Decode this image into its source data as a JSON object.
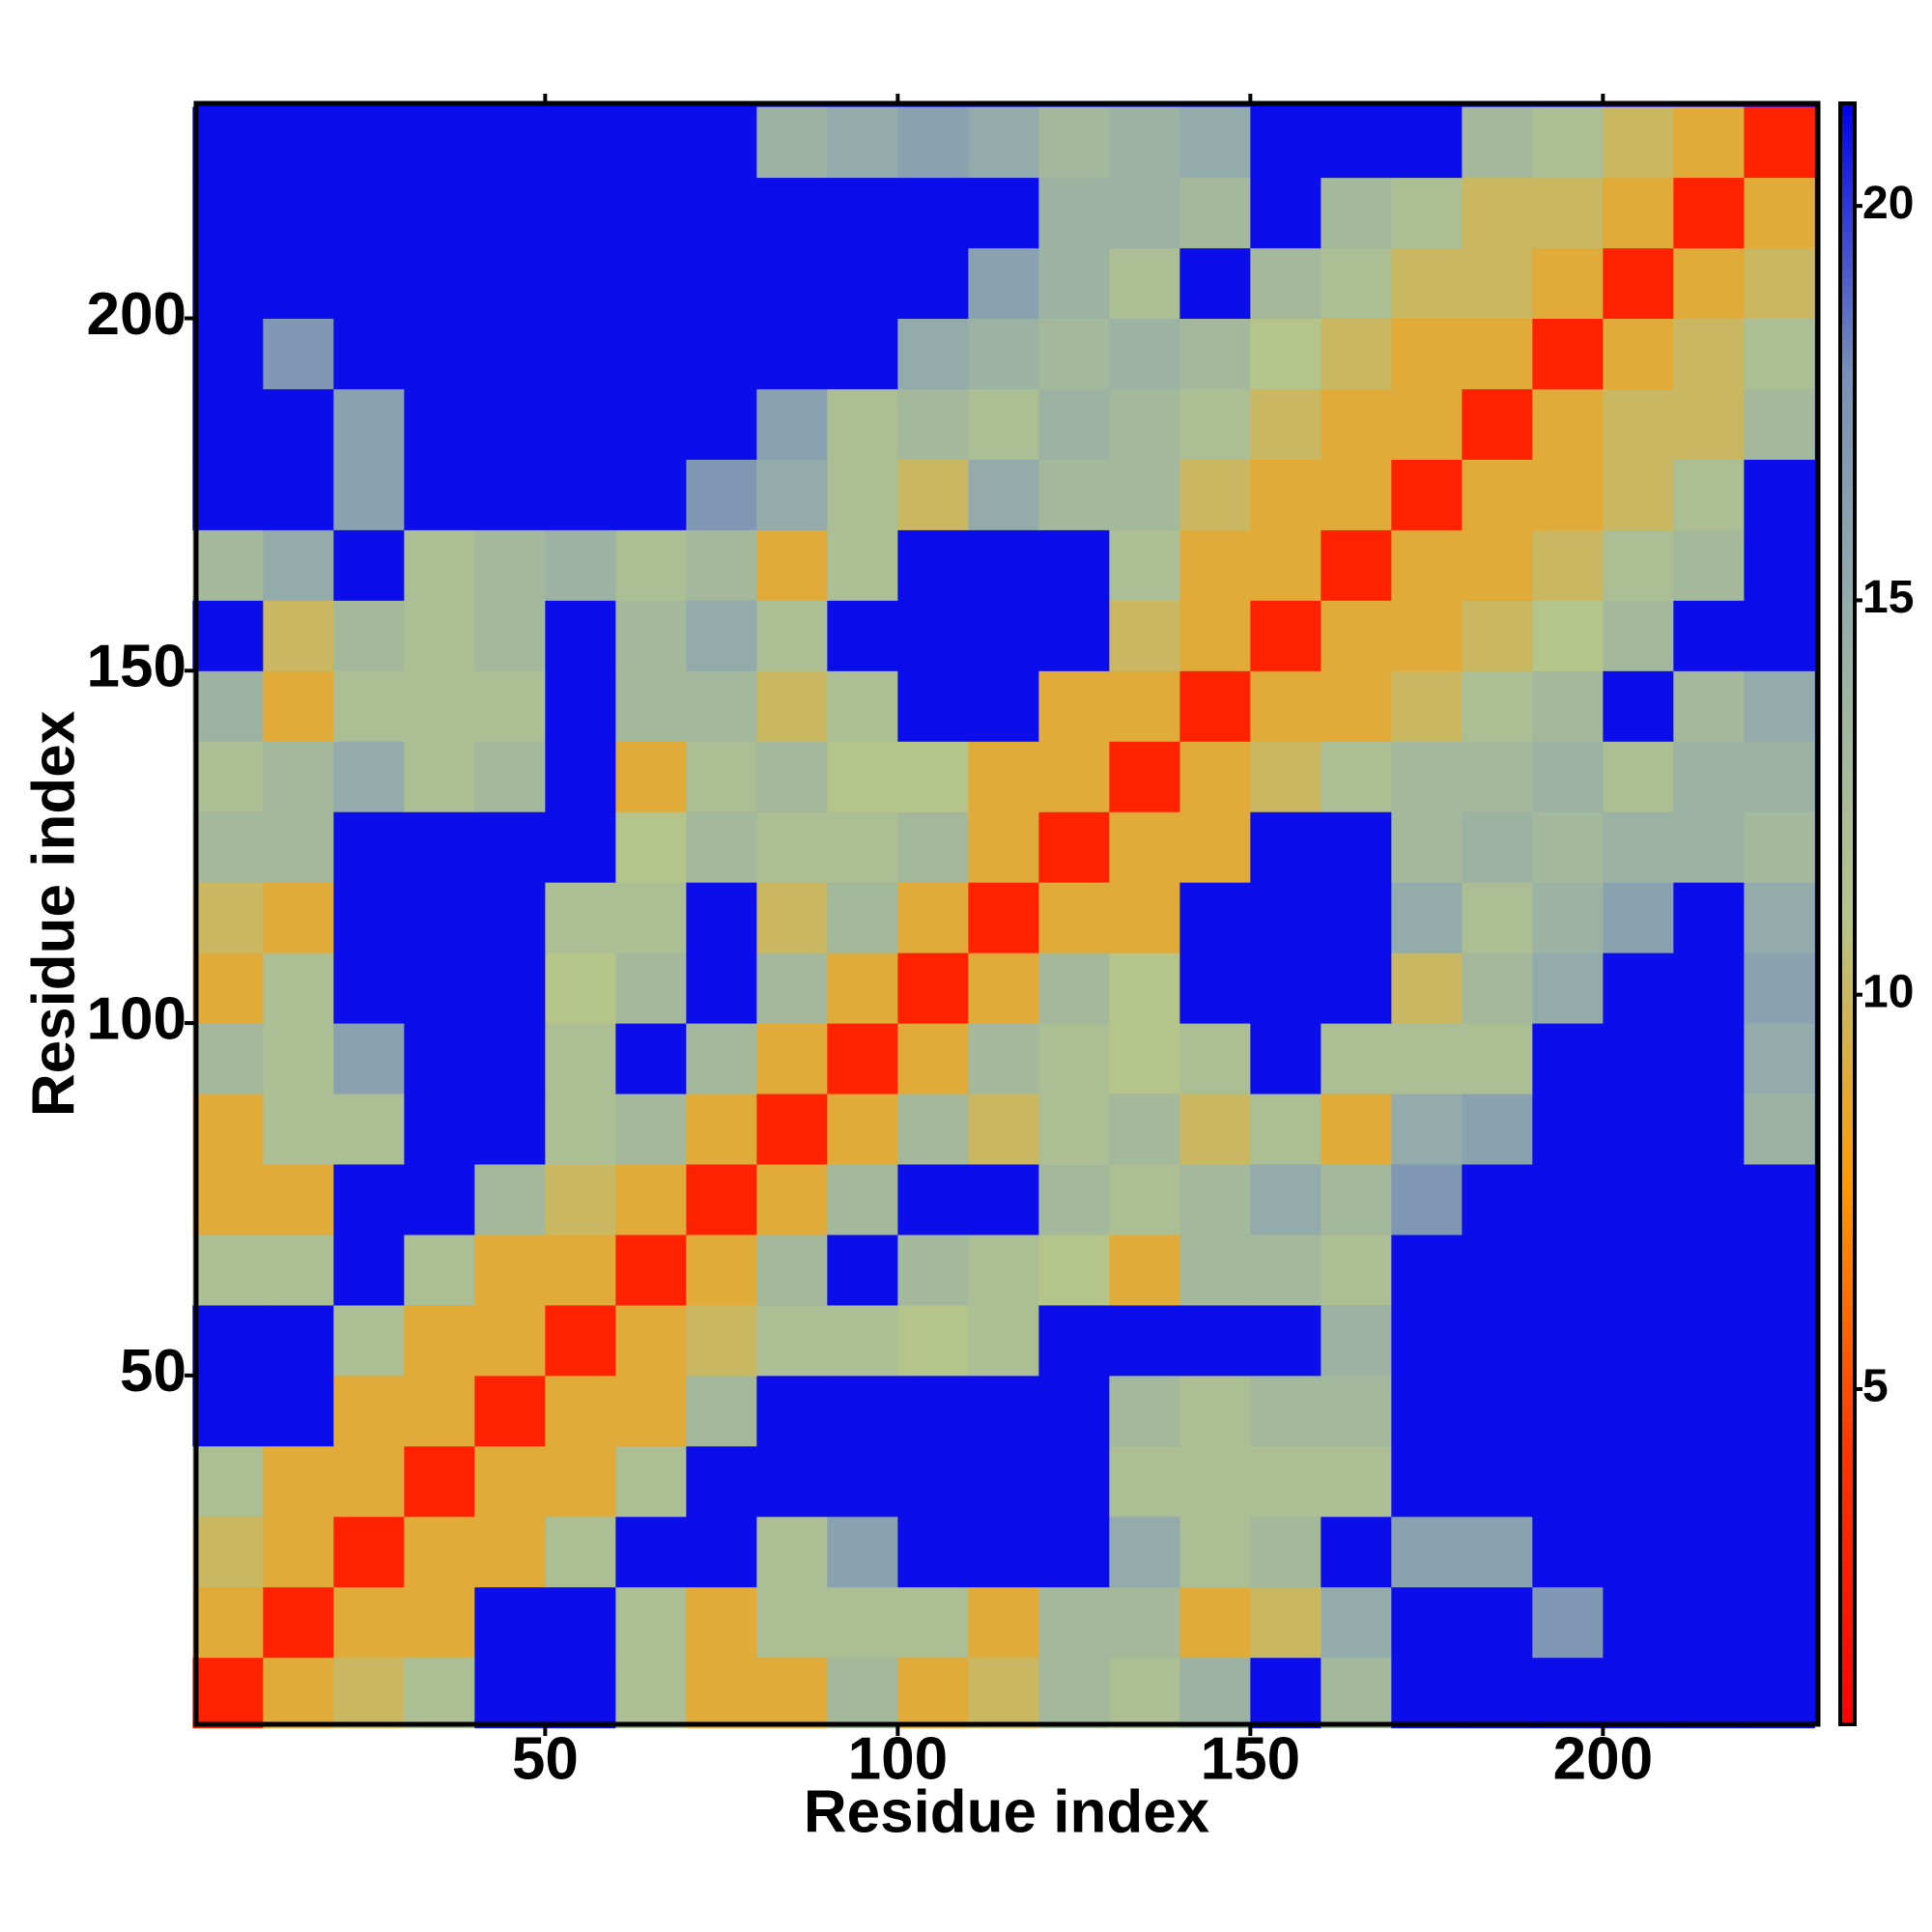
{
  "chart_data": {
    "type": "heatmap",
    "xlabel": "Residue index",
    "ylabel": "Residue index",
    "x": [
      5,
      15,
      25,
      35,
      45,
      55,
      65,
      75,
      85,
      95,
      105,
      115,
      125,
      135,
      145,
      155,
      165,
      175,
      185,
      195,
      205,
      215,
      225
    ],
    "y": [
      5,
      15,
      25,
      35,
      45,
      55,
      65,
      75,
      85,
      95,
      105,
      115,
      125,
      135,
      145,
      155,
      165,
      175,
      185,
      195,
      205,
      215,
      225
    ],
    "z": [
      [
        3,
        9,
        10,
        12,
        21,
        21,
        12,
        9,
        9,
        13,
        9,
        10,
        13,
        12,
        14,
        21,
        13,
        21,
        21,
        21,
        21,
        21,
        21
      ],
      [
        9,
        3,
        9,
        9,
        21,
        21,
        12,
        9,
        12,
        12,
        12,
        9,
        13,
        13,
        9,
        10,
        15,
        21,
        21,
        17,
        21,
        21,
        21
      ],
      [
        10,
        9,
        3,
        9,
        9,
        12,
        21,
        21,
        12,
        16,
        21,
        21,
        21,
        15,
        12,
        13,
        21,
        16,
        16,
        21,
        21,
        21,
        21
      ],
      [
        12,
        9,
        9,
        3,
        9,
        9,
        12,
        21,
        21,
        21,
        21,
        21,
        21,
        12,
        12,
        12,
        12,
        21,
        21,
        21,
        21,
        21,
        21
      ],
      [
        21,
        21,
        9,
        9,
        3,
        9,
        9,
        13,
        21,
        21,
        21,
        21,
        21,
        13,
        12,
        13,
        13,
        21,
        21,
        21,
        21,
        21,
        21
      ],
      [
        21,
        21,
        12,
        9,
        9,
        3,
        9,
        10,
        12,
        12,
        11,
        12,
        21,
        21,
        21,
        21,
        14,
        21,
        21,
        21,
        21,
        21,
        21
      ],
      [
        12,
        12,
        21,
        12,
        9,
        9,
        3,
        9,
        13,
        21,
        13,
        12,
        11,
        9,
        13,
        13,
        12,
        21,
        21,
        21,
        21,
        21,
        21
      ],
      [
        9,
        9,
        21,
        21,
        13,
        10,
        9,
        3,
        9,
        13,
        21,
        21,
        13,
        12,
        13,
        15,
        13,
        17,
        21,
        21,
        21,
        21,
        21
      ],
      [
        9,
        12,
        12,
        21,
        21,
        12,
        13,
        9,
        3,
        9,
        13,
        10,
        12,
        13,
        10,
        12,
        9,
        15,
        16,
        21,
        21,
        21,
        14
      ],
      [
        13,
        12,
        16,
        21,
        21,
        12,
        21,
        13,
        9,
        3,
        9,
        13,
        12,
        11,
        12,
        21,
        12,
        12,
        12,
        21,
        21,
        21,
        15
      ],
      [
        9,
        12,
        21,
        21,
        21,
        11,
        13,
        21,
        13,
        9,
        3,
        9,
        13,
        11,
        21,
        21,
        21,
        10,
        13,
        15,
        21,
        21,
        16
      ],
      [
        10,
        9,
        21,
        21,
        21,
        12,
        12,
        21,
        10,
        13,
        9,
        3,
        9,
        9,
        21,
        21,
        21,
        15,
        12,
        14,
        16,
        21,
        15
      ],
      [
        13,
        13,
        21,
        21,
        21,
        21,
        11,
        13,
        12,
        12,
        13,
        9,
        3,
        9,
        9,
        21,
        21,
        13,
        14,
        13,
        14,
        14,
        13
      ],
      [
        12,
        13,
        15,
        12,
        13,
        21,
        9,
        12,
        13,
        11,
        11,
        9,
        9,
        3,
        9,
        10,
        12,
        13,
        13,
        14,
        12,
        14,
        14
      ],
      [
        14,
        9,
        12,
        12,
        12,
        21,
        13,
        13,
        10,
        12,
        21,
        21,
        9,
        9,
        3,
        9,
        9,
        10,
        12,
        13,
        21,
        13,
        15
      ],
      [
        21,
        10,
        13,
        12,
        13,
        21,
        13,
        15,
        12,
        21,
        21,
        21,
        21,
        10,
        9,
        3,
        9,
        9,
        10,
        11,
        13,
        21,
        21
      ],
      [
        13,
        15,
        21,
        12,
        13,
        14,
        12,
        13,
        9,
        12,
        21,
        21,
        21,
        12,
        9,
        9,
        3,
        9,
        9,
        10,
        12,
        13,
        21
      ],
      [
        21,
        21,
        16,
        21,
        21,
        21,
        21,
        17,
        15,
        12,
        10,
        15,
        13,
        13,
        10,
        9,
        9,
        3,
        9,
        9,
        10,
        12,
        21
      ],
      [
        21,
        21,
        16,
        21,
        21,
        21,
        21,
        21,
        16,
        12,
        13,
        12,
        14,
        13,
        12,
        10,
        9,
        9,
        3,
        9,
        10,
        10,
        13
      ],
      [
        21,
        17,
        21,
        21,
        21,
        21,
        21,
        21,
        21,
        21,
        15,
        14,
        13,
        14,
        13,
        11,
        10,
        9,
        9,
        3,
        9,
        10,
        12
      ],
      [
        21,
        21,
        21,
        21,
        21,
        21,
        21,
        21,
        21,
        21,
        21,
        16,
        14,
        12,
        21,
        13,
        12,
        10,
        10,
        9,
        3,
        9,
        10
      ],
      [
        21,
        21,
        21,
        21,
        21,
        21,
        21,
        21,
        21,
        21,
        21,
        21,
        14,
        14,
        13,
        21,
        13,
        12,
        10,
        10,
        9,
        3,
        9
      ],
      [
        21,
        21,
        21,
        21,
        21,
        21,
        21,
        21,
        14,
        15,
        16,
        15,
        13,
        14,
        15,
        21,
        21,
        21,
        13,
        12,
        10,
        9,
        3
      ]
    ],
    "xlim": [
      0.5,
      230.5
    ],
    "ylim": [
      0.5,
      230.5
    ],
    "xticks": [
      50,
      100,
      150,
      200
    ],
    "yticks": [
      50,
      100,
      150,
      200
    ],
    "zlim": [
      0.75,
      21.3
    ],
    "zticks": [
      5,
      10,
      15,
      20
    ],
    "colorscale": [
      "#ff0000",
      "#ff3300",
      "#ff9900",
      "#b4c48a",
      "#98b0a8",
      "#7890b8",
      "#0000f0"
    ]
  }
}
